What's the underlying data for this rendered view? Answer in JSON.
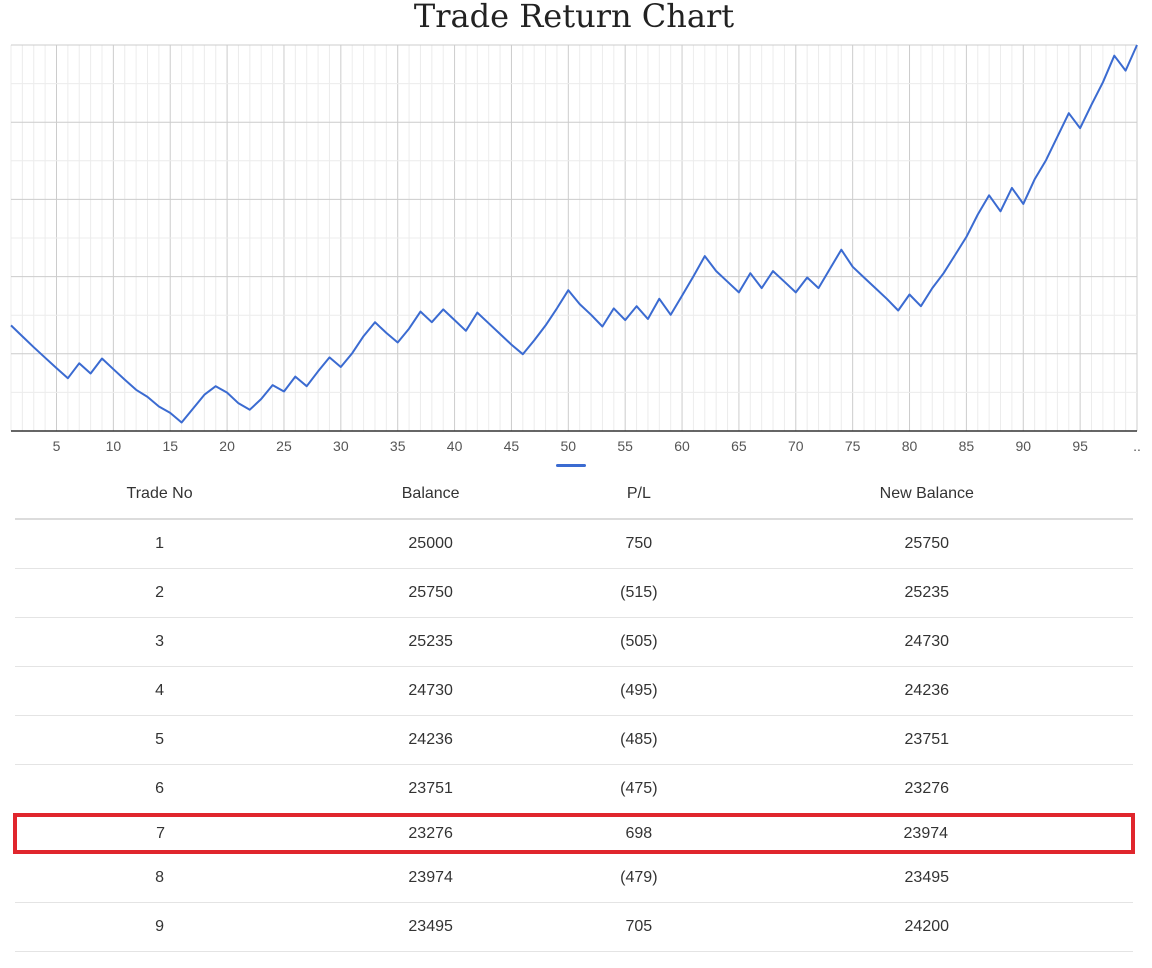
{
  "chart_data": {
    "type": "line",
    "title": "Trade Return Chart",
    "xlabel": "",
    "ylabel": "",
    "x_ticks": [
      "5",
      "10",
      "15",
      "20",
      "25",
      "30",
      "35",
      "40",
      "45",
      "50",
      "55",
      "60",
      "65",
      "70",
      "75",
      "80",
      "85",
      "90",
      "95",
      ".."
    ],
    "xlim": [
      1,
      100
    ],
    "grid": true,
    "series": [
      {
        "values": [
          25750,
          25235,
          24730,
          24236,
          23751,
          23276,
          23974,
          23495,
          24200,
          23700,
          23210,
          22730,
          22400,
          21950,
          21650,
          21200,
          21850,
          22500,
          22900,
          22600,
          22100,
          21800,
          22300,
          22950,
          22650,
          23350,
          22900,
          23600,
          24250,
          23800,
          24450,
          25250,
          25900,
          25400,
          24950,
          25600,
          26400,
          25900,
          26500,
          26000,
          25500,
          26350,
          25850,
          25350,
          24850,
          24400,
          25050,
          25750,
          26550,
          27400,
          26750,
          26250,
          25700,
          26550,
          26000,
          26650,
          26050,
          27000,
          26250,
          27150,
          28050,
          29000,
          28300,
          27800,
          27300,
          28200,
          27500,
          28300,
          27800,
          27300,
          28000,
          27500,
          28400,
          29300,
          28500,
          28000,
          27500,
          27000,
          26450,
          27200,
          26650,
          27500,
          28200,
          29050,
          29900,
          30950,
          31850,
          31100,
          32200,
          31450,
          32600,
          33500,
          34600,
          35700,
          35000,
          36100,
          37150,
          38400,
          37700,
          38900
        ],
        "ylim": [
          20800,
          38900
        ]
      }
    ]
  },
  "table": {
    "headers": [
      "Trade No",
      "Balance",
      "P/L",
      "New Balance"
    ],
    "rows": [
      [
        "1",
        "25000",
        "750",
        "25750"
      ],
      [
        "2",
        "25750",
        "(515)",
        "25235"
      ],
      [
        "3",
        "25235",
        "(505)",
        "24730"
      ],
      [
        "4",
        "24730",
        "(495)",
        "24236"
      ],
      [
        "5",
        "24236",
        "(485)",
        "23751"
      ],
      [
        "6",
        "23751",
        "(475)",
        "23276"
      ],
      [
        "7",
        "23276",
        "698",
        "23974"
      ],
      [
        "8",
        "23974",
        "(479)",
        "23495"
      ],
      [
        "9",
        "23495",
        "705",
        "24200"
      ]
    ],
    "highlighted_row": "7",
    "highlight_color": "#e0262d"
  },
  "colors": {
    "line": "#3b6bd1",
    "grid_major": "#cccccc",
    "grid_minor": "#ececec"
  }
}
